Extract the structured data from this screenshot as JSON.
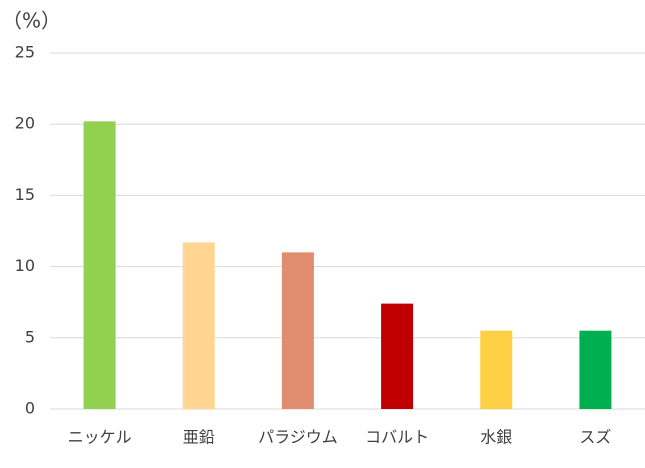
{
  "chart_data": {
    "type": "bar",
    "y_label": "（%）",
    "categories": [
      "ニッケル",
      "亜鉛",
      "パラジウム",
      "コバルト",
      "水銀",
      "スズ"
    ],
    "values": [
      20.2,
      11.7,
      11.0,
      7.4,
      5.5,
      5.5
    ],
    "colors": [
      "#92d050",
      "#ffd591",
      "#e08c6e",
      "#c00000",
      "#ffd045",
      "#00b050"
    ],
    "ylim": [
      0,
      25
    ],
    "yticks": [
      0,
      5,
      10,
      15,
      20,
      25
    ],
    "grid": true
  }
}
